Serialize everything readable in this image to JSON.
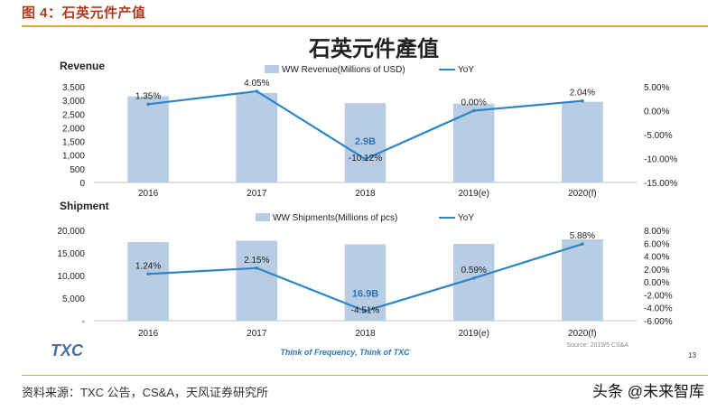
{
  "header": {
    "title": "图 4：石英元件产值"
  },
  "footer": {
    "source": "资料来源：TXC 公告，CS&A，天风证券研究所",
    "watermark": "头条 @未来智库"
  },
  "slide": {
    "title": "石英元件產值",
    "logo": "TXC",
    "tagline": "Think of Frequency, Think of TXC",
    "source": "Source: 2019/5 CS&A",
    "page_number": "13"
  },
  "colors": {
    "bar": "#b8cce4",
    "line": "#2e86c8",
    "highlight": "#2e75b6",
    "header": "#b03a1e",
    "rule": "#e0a640"
  },
  "chart_data": [
    {
      "type": "bar",
      "panel_title": "Revenue",
      "categories": [
        "2016",
        "2017",
        "2018",
        "2019(e)",
        "2020(f)"
      ],
      "series": [
        {
          "name": "WW Revenue(Millions of USD)",
          "kind": "bar",
          "axis": "left",
          "values": [
            3150,
            3270,
            2900,
            2880,
            2950
          ]
        },
        {
          "name": "YoY",
          "kind": "line",
          "axis": "right",
          "values": [
            1.35,
            4.05,
            -10.12,
            0.0,
            2.04
          ]
        }
      ],
      "point_labels": [
        "1.35%",
        "4.05%",
        "-10.12%",
        "0.00%",
        "2.04%"
      ],
      "annotation": {
        "text": "2.9B",
        "category": "2018"
      },
      "y_left": {
        "min": 0,
        "max": 3500,
        "ticks": [
          "0",
          "500",
          "1,000",
          "1,500",
          "2,000",
          "2,500",
          "3,000",
          "3,500"
        ]
      },
      "y_right": {
        "min": -15,
        "max": 5,
        "ticks": [
          "-15.00%",
          "-10.00%",
          "-5.00%",
          "0.00%",
          "5.00%"
        ]
      }
    },
    {
      "type": "bar",
      "panel_title": "Shipment",
      "categories": [
        "2016",
        "2017",
        "2018",
        "2019(e)",
        "2020(f)"
      ],
      "series": [
        {
          "name": "WW Shipments(Millions of pcs)",
          "kind": "bar",
          "axis": "left",
          "values": [
            17400,
            17700,
            16900,
            17000,
            18000
          ]
        },
        {
          "name": "YoY",
          "kind": "line",
          "axis": "right",
          "values": [
            1.24,
            2.15,
            -4.51,
            0.59,
            5.88
          ]
        }
      ],
      "point_labels": [
        "1.24%",
        "2.15%",
        "-4.51%",
        "0.59%",
        "5.88%"
      ],
      "annotation": {
        "text": "16.9B",
        "category": "2018"
      },
      "y_left": {
        "min": 0,
        "max": 20000,
        "ticks": [
          "-",
          "5,000",
          "10,000",
          "15,000",
          "20,000"
        ]
      },
      "y_right": {
        "min": -6,
        "max": 8,
        "ticks": [
          "-6.00%",
          "-4.00%",
          "-2.00%",
          "0.00%",
          "2.00%",
          "4.00%",
          "6.00%",
          "8.00%"
        ]
      }
    }
  ]
}
